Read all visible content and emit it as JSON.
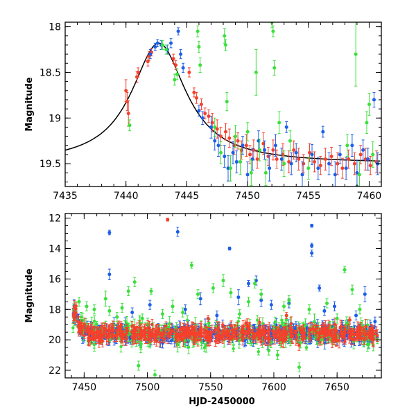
{
  "figure": {
    "xlabel": "HJD-2450000"
  },
  "colors": {
    "red": "#f5402c",
    "blue": "#1c5ee8",
    "green": "#3ae03a",
    "model": "#000000"
  },
  "chart_data": [
    {
      "type": "scatter",
      "xlabel": "",
      "ylabel": "Magnitude",
      "xlim": [
        7435,
        7461
      ],
      "ylim": [
        19.75,
        17.95
      ],
      "y_inverted": true,
      "x_ticks": [
        7435,
        7440,
        7445,
        7450,
        7455,
        7460
      ],
      "y_ticks": [
        18,
        18.5,
        19,
        19.5
      ],
      "model_curve": {
        "color": "black",
        "t0": 7442.7,
        "peak_mag": 18.18,
        "baseline_mag": 19.5
      },
      "series": [
        {
          "color": "red",
          "points": [
            [
              7440.0,
              18.7,
              0.12
            ],
            [
              7440.1,
              18.82,
              0.1
            ],
            [
              7440.2,
              18.95,
              0.14
            ],
            [
              7440.9,
              18.55,
              0.06
            ],
            [
              7441.0,
              18.5,
              0.05
            ],
            [
              7441.8,
              18.38,
              0.05
            ],
            [
              7441.9,
              18.32,
              0.05
            ],
            [
              7442.1,
              18.28,
              0.04
            ],
            [
              7443.9,
              18.35,
              0.05
            ],
            [
              7444.1,
              18.42,
              0.05
            ],
            [
              7445.2,
              18.5,
              0.05
            ],
            [
              7445.6,
              18.72,
              0.05
            ],
            [
              7445.8,
              18.78,
              0.06
            ],
            [
              7446.2,
              18.85,
              0.06
            ],
            [
              7446.5,
              18.95,
              0.06
            ],
            [
              7446.8,
              18.98,
              0.07
            ],
            [
              7447.1,
              19.05,
              0.1
            ],
            [
              7447.5,
              19.12,
              0.1
            ],
            [
              7447.8,
              19.2,
              0.1
            ],
            [
              7448.2,
              19.15,
              0.09
            ],
            [
              7448.5,
              19.22,
              0.1
            ],
            [
              7448.9,
              19.3,
              0.1
            ],
            [
              7449.2,
              19.25,
              0.09
            ],
            [
              7449.5,
              19.35,
              0.1
            ],
            [
              7449.9,
              19.3,
              0.12
            ],
            [
              7450.2,
              19.4,
              0.1
            ],
            [
              7450.5,
              19.35,
              0.11
            ],
            [
              7450.8,
              19.45,
              0.1
            ],
            [
              7451.3,
              19.28,
              0.12
            ],
            [
              7451.7,
              19.42,
              0.1
            ],
            [
              7452.1,
              19.35,
              0.11
            ],
            [
              7452.4,
              19.45,
              0.1
            ],
            [
              7452.9,
              19.4,
              0.12
            ],
            [
              7453.4,
              19.48,
              0.12
            ],
            [
              7453.8,
              19.35,
              0.1
            ],
            [
              7454.2,
              19.45,
              0.12
            ],
            [
              7454.6,
              19.5,
              0.1
            ],
            [
              7455.1,
              19.38,
              0.1
            ],
            [
              7455.5,
              19.48,
              0.11
            ],
            [
              7456.0,
              19.52,
              0.1
            ],
            [
              7456.4,
              19.45,
              0.12
            ],
            [
              7456.9,
              19.42,
              0.1
            ],
            [
              7457.4,
              19.5,
              0.12
            ],
            [
              7457.8,
              19.55,
              0.11
            ],
            [
              7458.3,
              19.45,
              0.1
            ],
            [
              7458.8,
              19.5,
              0.12
            ],
            [
              7459.3,
              19.4,
              0.1
            ],
            [
              7459.7,
              19.45,
              0.12
            ],
            [
              7460.1,
              19.52,
              0.1
            ],
            [
              7460.6,
              19.48,
              0.12
            ]
          ]
        },
        {
          "color": "blue",
          "points": [
            [
              7442.0,
              18.3,
              0.05
            ],
            [
              7442.4,
              18.22,
              0.04
            ],
            [
              7442.6,
              18.18,
              0.04
            ],
            [
              7442.9,
              18.2,
              0.05
            ],
            [
              7443.4,
              18.25,
              0.05
            ],
            [
              7443.7,
              18.18,
              0.05
            ],
            [
              7444.3,
              18.05,
              0.04
            ],
            [
              7444.5,
              18.3,
              0.05
            ],
            [
              7444.7,
              18.45,
              0.05
            ],
            [
              7446.0,
              18.92,
              0.06
            ],
            [
              7446.3,
              19.0,
              0.07
            ],
            [
              7447.0,
              19.1,
              0.12
            ],
            [
              7447.3,
              19.25,
              0.1
            ],
            [
              7447.6,
              19.3,
              0.12
            ],
            [
              7448.1,
              19.42,
              0.12
            ],
            [
              7448.4,
              19.55,
              0.14
            ],
            [
              7448.8,
              19.38,
              0.12
            ],
            [
              7449.1,
              19.48,
              0.12
            ],
            [
              7449.6,
              19.3,
              0.1
            ],
            [
              7450.0,
              19.62,
              0.14
            ],
            [
              7450.4,
              19.45,
              0.12
            ],
            [
              7450.9,
              19.25,
              0.11
            ],
            [
              7451.4,
              19.35,
              0.1
            ],
            [
              7451.8,
              19.55,
              0.14
            ],
            [
              7452.3,
              19.3,
              0.12
            ],
            [
              7452.8,
              19.45,
              0.12
            ],
            [
              7453.2,
              19.1,
              0.06
            ],
            [
              7453.6,
              19.5,
              0.12
            ],
            [
              7454.0,
              19.38,
              0.1
            ],
            [
              7454.5,
              19.62,
              0.14
            ],
            [
              7455.3,
              19.4,
              0.11
            ],
            [
              7455.8,
              19.55,
              0.12
            ],
            [
              7456.2,
              19.15,
              0.06
            ],
            [
              7456.7,
              19.5,
              0.12
            ],
            [
              7457.2,
              19.62,
              0.14
            ],
            [
              7457.6,
              19.4,
              0.1
            ],
            [
              7458.1,
              19.55,
              0.12
            ],
            [
              7458.6,
              19.3,
              0.12
            ],
            [
              7459.0,
              19.6,
              0.14
            ],
            [
              7459.5,
              19.35,
              0.11
            ],
            [
              7459.9,
              19.45,
              0.12
            ],
            [
              7460.4,
              18.8,
              0.08
            ],
            [
              7460.7,
              19.5,
              0.12
            ]
          ]
        },
        {
          "color": "green",
          "points": [
            [
              7440.3,
              19.08,
              0.06
            ],
            [
              7443.0,
              18.2,
              0.05
            ],
            [
              7443.3,
              18.25,
              0.05
            ],
            [
              7444.0,
              18.58,
              0.06
            ],
            [
              7444.2,
              18.52,
              0.06
            ],
            [
              7445.9,
              18.05,
              0.06
            ],
            [
              7446.0,
              18.22,
              0.06
            ],
            [
              7446.1,
              18.42,
              0.08
            ],
            [
              7447.3,
              19.1,
              0.1
            ],
            [
              7447.8,
              19.38,
              0.12
            ],
            [
              7448.1,
              18.1,
              0.08
            ],
            [
              7448.2,
              18.2,
              0.06
            ],
            [
              7448.3,
              18.82,
              0.1
            ],
            [
              7448.6,
              19.55,
              0.14
            ],
            [
              7449.0,
              19.2,
              0.12
            ],
            [
              7449.4,
              19.48,
              0.14
            ],
            [
              7450.0,
              19.15,
              0.1
            ],
            [
              7450.3,
              19.6,
              0.14
            ],
            [
              7450.7,
              18.5,
              0.25
            ],
            [
              7451.0,
              19.35,
              0.12
            ],
            [
              7451.5,
              19.6,
              0.14
            ],
            [
              7452.0,
              17.95,
              0.06
            ],
            [
              7452.1,
              18.05,
              0.06
            ],
            [
              7452.2,
              18.45,
              0.08
            ],
            [
              7452.6,
              19.05,
              0.12
            ],
            [
              7453.0,
              19.5,
              0.14
            ],
            [
              7453.5,
              19.25,
              0.11
            ],
            [
              7455.0,
              19.55,
              0.12
            ],
            [
              7458.2,
              19.3,
              0.12
            ],
            [
              7458.9,
              18.3,
              0.35
            ],
            [
              7459.2,
              19.62,
              0.14
            ],
            [
              7459.8,
              19.05,
              0.12
            ],
            [
              7460.0,
              18.85,
              0.12
            ],
            [
              7460.3,
              19.4,
              0.14
            ]
          ]
        }
      ]
    },
    {
      "type": "scatter",
      "xlabel": "HJD-2450000",
      "ylabel": "Magnitude",
      "xlim": [
        7435,
        7685
      ],
      "ylim": [
        22.5,
        11.7
      ],
      "y_inverted": true,
      "x_ticks": [
        7450,
        7500,
        7550,
        7600,
        7650
      ],
      "y_ticks": [
        12,
        14,
        16,
        18,
        20,
        22
      ],
      "baseline_mag": 19.6,
      "x_range": [
        7441,
        7682
      ],
      "outliers": [
        {
          "color": "red",
          "points": [
            [
              7516,
              12.1,
              0.1
            ],
            [
              7548,
              18.6,
              0.2
            ],
            [
              7578,
              18.9,
              0.2
            ],
            [
              7610,
              18.4,
              0.2
            ],
            [
              7660,
              18.7,
              0.2
            ]
          ]
        },
        {
          "color": "blue",
          "points": [
            [
              7470,
              12.95,
              0.15
            ],
            [
              7470,
              15.7,
              0.35
            ],
            [
              7488,
              18.2,
              0.3
            ],
            [
              7502,
              17.7,
              0.3
            ],
            [
              7524,
              12.9,
              0.3
            ],
            [
              7530,
              18.0,
              0.3
            ],
            [
              7542,
              17.3,
              0.4
            ],
            [
              7555,
              18.4,
              0.3
            ],
            [
              7565,
              14.0,
              0.1
            ],
            [
              7572,
              17.2,
              0.5
            ],
            [
              7580,
              16.3,
              0.2
            ],
            [
              7586,
              16.1,
              0.3
            ],
            [
              7590,
              17.4,
              0.4
            ],
            [
              7598,
              17.7,
              0.3
            ],
            [
              7612,
              17.6,
              0.3
            ],
            [
              7630,
              12.5,
              0.1
            ],
            [
              7630,
              13.8,
              0.15
            ],
            [
              7630,
              14.3,
              0.2
            ],
            [
              7636,
              16.6,
              0.2
            ],
            [
              7640,
              18.1,
              0.3
            ],
            [
              7648,
              17.8,
              0.3
            ],
            [
              7665,
              18.4,
              0.3
            ],
            [
              7672,
              17.0,
              0.5
            ],
            [
              7680,
              18.8,
              0.3
            ]
          ]
        },
        {
          "color": "green",
          "points": [
            [
              7446,
              17.5,
              0.3
            ],
            [
              7452,
              17.8,
              0.3
            ],
            [
              7458,
              18.0,
              0.3
            ],
            [
              7467,
              17.3,
              0.5
            ],
            [
              7470,
              18.1,
              0.3
            ],
            [
              7476,
              18.5,
              0.3
            ],
            [
              7480,
              17.9,
              0.3
            ],
            [
              7485,
              16.8,
              0.3
            ],
            [
              7490,
              16.2,
              0.3
            ],
            [
              7493,
              21.7,
              0.3
            ],
            [
              7496,
              18.6,
              0.3
            ],
            [
              7503,
              16.8,
              0.2
            ],
            [
              7506,
              22.3,
              0.3
            ],
            [
              7512,
              18.3,
              0.3
            ],
            [
              7520,
              17.8,
              0.4
            ],
            [
              7528,
              18.2,
              0.3
            ],
            [
              7535,
              15.1,
              0.2
            ],
            [
              7540,
              17.0,
              0.3
            ],
            [
              7552,
              16.6,
              0.3
            ],
            [
              7560,
              16.1,
              0.4
            ],
            [
              7566,
              16.9,
              0.3
            ],
            [
              7573,
              18.3,
              0.3
            ],
            [
              7580,
              17.5,
              0.3
            ],
            [
              7585,
              16.3,
              0.3
            ],
            [
              7590,
              17.0,
              0.3
            ],
            [
              7596,
              20.7,
              0.3
            ],
            [
              7603,
              21.0,
              0.3
            ],
            [
              7608,
              17.8,
              0.3
            ],
            [
              7612,
              17.4,
              0.3
            ],
            [
              7620,
              21.8,
              0.3
            ],
            [
              7628,
              18.0,
              0.3
            ],
            [
              7638,
              20.0,
              0.3
            ],
            [
              7642,
              17.6,
              0.3
            ],
            [
              7650,
              18.6,
              0.3
            ],
            [
              7656,
              15.4,
              0.2
            ],
            [
              7662,
              16.7,
              0.3
            ],
            [
              7668,
              18.0,
              0.3
            ],
            [
              7675,
              20.3,
              0.3
            ]
          ]
        }
      ]
    }
  ]
}
